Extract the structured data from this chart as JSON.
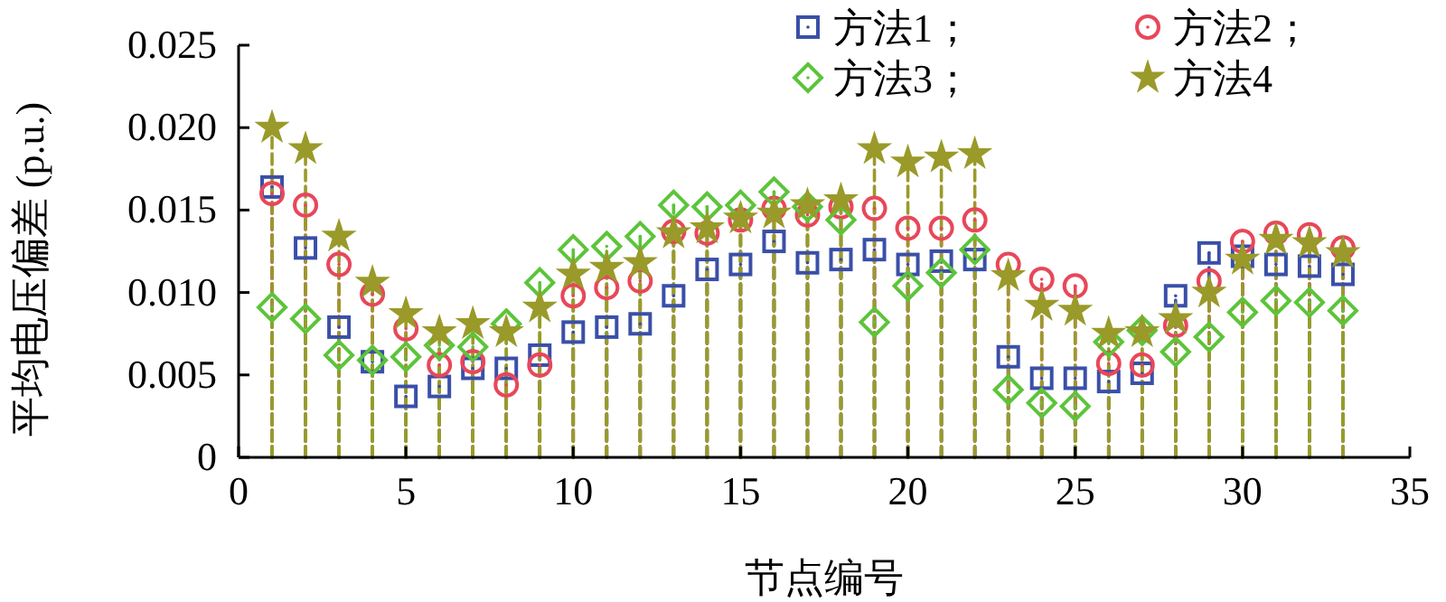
{
  "chart_data": {
    "type": "lollipop",
    "xlabel": "节点编号",
    "ylabel": "平均电压偏差 (p.u.)",
    "x": [
      1,
      2,
      3,
      4,
      5,
      6,
      7,
      8,
      9,
      10,
      11,
      12,
      13,
      14,
      15,
      16,
      17,
      18,
      19,
      20,
      21,
      22,
      23,
      24,
      25,
      26,
      27,
      28,
      29,
      30,
      31,
      32,
      33
    ],
    "xlim": [
      0,
      35
    ],
    "xticks": [
      0,
      5,
      10,
      15,
      20,
      25,
      30,
      35
    ],
    "ylim": [
      0,
      0.025
    ],
    "yticks": [
      0,
      0.005,
      {
        "value": 0.01,
        "label": "0.010"
      },
      0.015,
      {
        "value": 0.02,
        "label": "0.020"
      },
      0.025
    ],
    "grid": false,
    "legend": "top right",
    "line_style": "dashed",
    "series": [
      {
        "name": "方法1；",
        "color": "#3a4fa8",
        "marker": "square",
        "values": [
          0.0164,
          0.0127,
          0.0079,
          0.0058,
          0.0037,
          0.0043,
          0.0054,
          0.0054,
          0.0062,
          0.0076,
          0.0079,
          0.0081,
          0.0098,
          0.0114,
          0.0117,
          0.0131,
          0.0118,
          0.012,
          0.0126,
          0.0117,
          0.0119,
          0.012,
          0.0061,
          0.0048,
          0.0048,
          0.0046,
          0.0051,
          0.0098,
          0.0124,
          0.0122,
          0.0117,
          0.0116,
          0.0111
        ]
      },
      {
        "name": "方法2；",
        "color": "#e8475a",
        "marker": "circle",
        "values": [
          0.016,
          0.0153,
          0.0117,
          0.0099,
          0.0078,
          0.0056,
          0.0058,
          0.0044,
          0.0056,
          0.0098,
          0.0103,
          0.0107,
          0.0137,
          0.0136,
          0.0144,
          0.0151,
          0.0147,
          0.0152,
          0.0151,
          0.0139,
          0.0139,
          0.0144,
          0.0117,
          0.0108,
          0.0104,
          0.0057,
          0.0056,
          0.008,
          0.0107,
          0.0131,
          0.0136,
          0.0135,
          0.0127
        ]
      },
      {
        "name": "方法3；",
        "color": "#5cc43a",
        "marker": "diamond",
        "values": [
          0.0091,
          0.0084,
          0.0062,
          0.0059,
          0.0061,
          0.0068,
          0.0067,
          0.0081,
          0.0106,
          0.0126,
          0.0128,
          0.0134,
          0.0153,
          0.0152,
          0.0153,
          0.0161,
          0.0152,
          0.0144,
          0.0082,
          0.0104,
          0.0112,
          0.0126,
          0.0041,
          0.0033,
          0.0031,
          0.007,
          0.0077,
          0.0064,
          0.0073,
          0.0088,
          0.0095,
          0.0094,
          0.0089
        ]
      },
      {
        "name": "方法4",
        "color": "#9a9a2a",
        "marker": "star",
        "values": [
          0.02,
          0.0187,
          0.0134,
          0.0106,
          0.0087,
          0.0076,
          0.0081,
          0.0076,
          0.0091,
          0.0111,
          0.0115,
          0.0118,
          0.0136,
          0.0139,
          0.0145,
          0.0148,
          0.0153,
          0.0156,
          0.0187,
          0.0179,
          0.0182,
          0.0184,
          0.011,
          0.0092,
          0.0089,
          0.0075,
          0.0076,
          0.0084,
          0.01,
          0.012,
          0.0132,
          0.013,
          0.0124
        ]
      }
    ]
  }
}
